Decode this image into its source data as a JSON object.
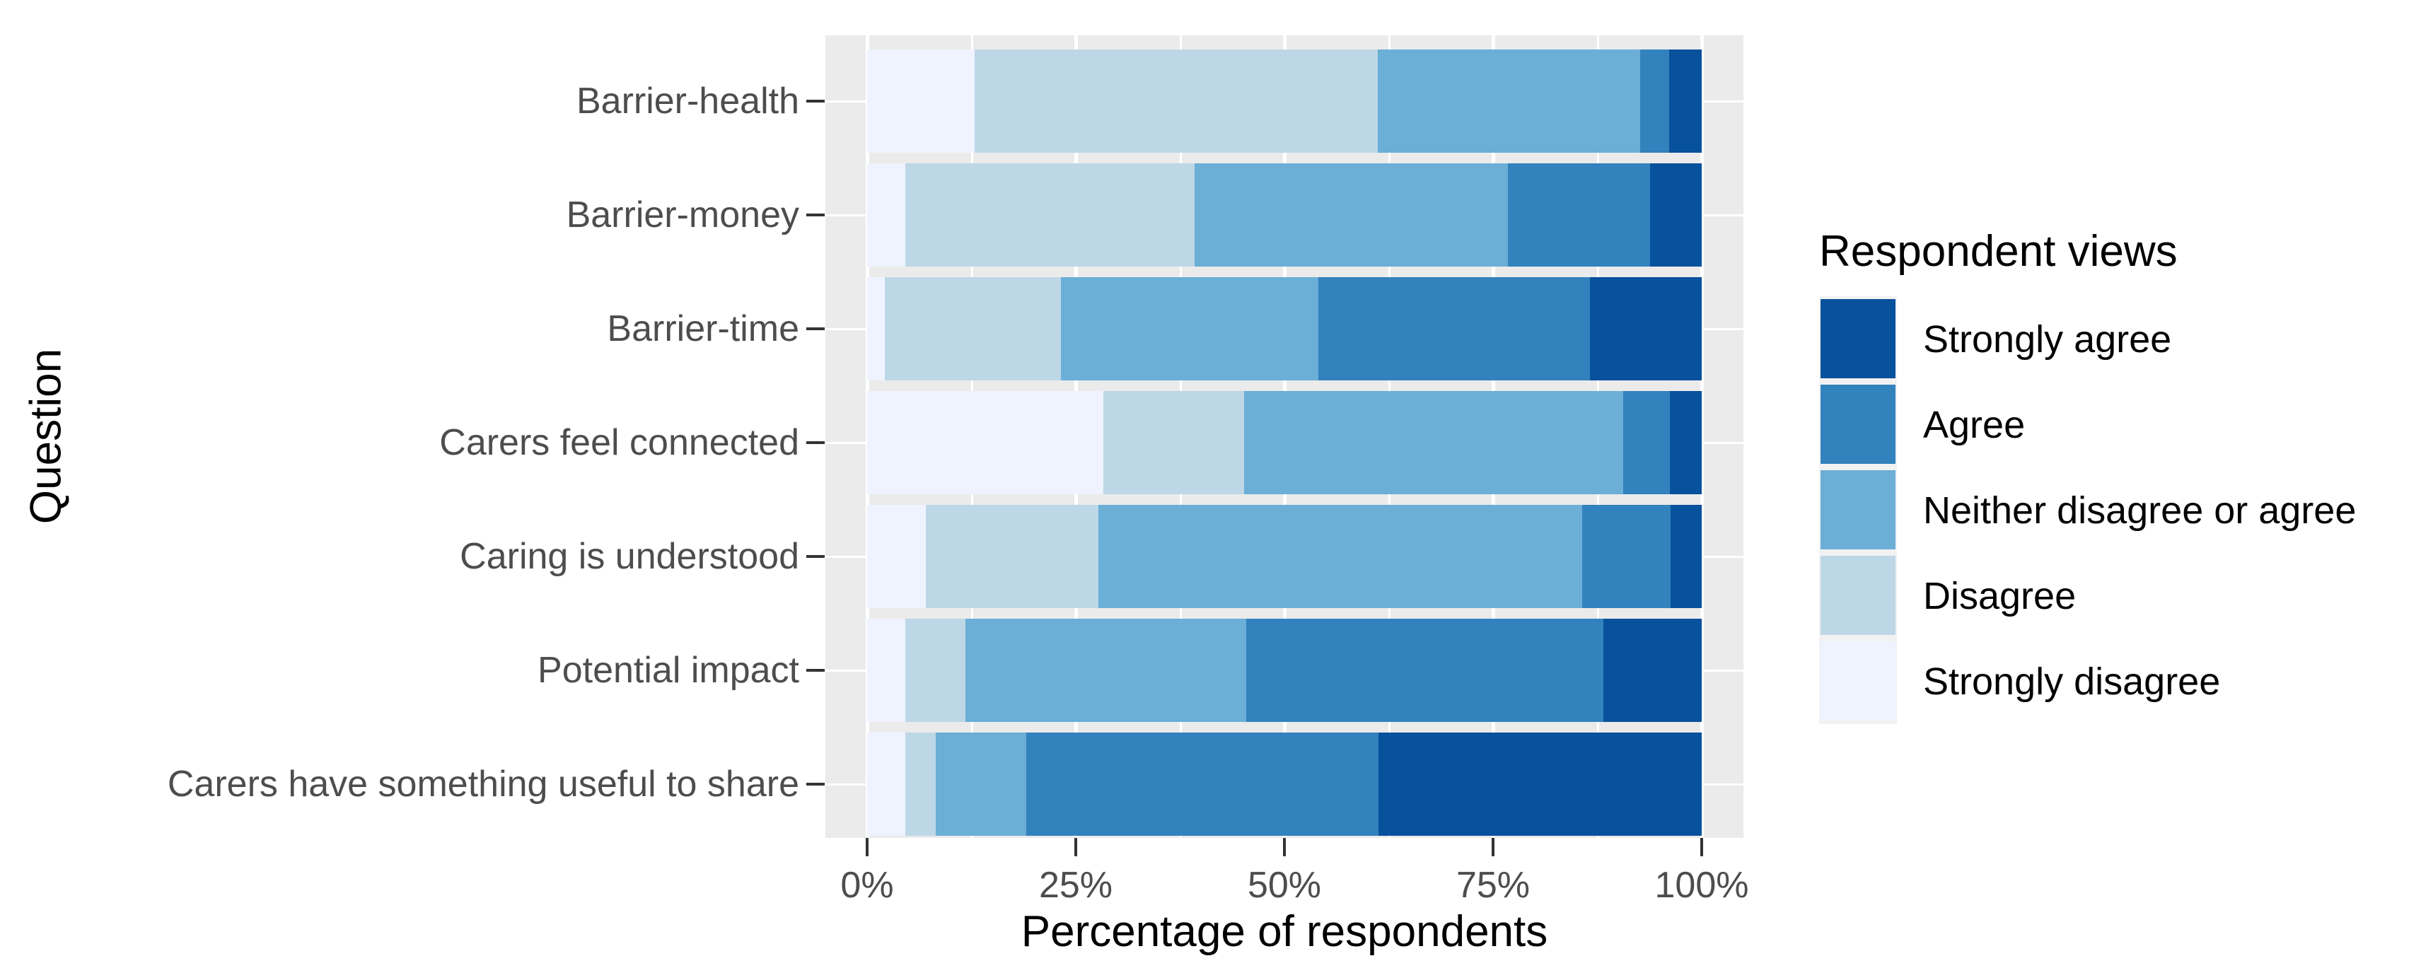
{
  "chart_data": {
    "type": "bar",
    "orientation": "horizontal",
    "stacked": true,
    "xlabel": "Percentage of respondents",
    "ylabel": "Question",
    "xlim": [
      0,
      100
    ],
    "x_ticks": [
      {
        "value": 0,
        "label": "0%"
      },
      {
        "value": 25,
        "label": "25%"
      },
      {
        "value": 50,
        "label": "50%"
      },
      {
        "value": 75,
        "label": "75%"
      },
      {
        "value": 100,
        "label": "100%"
      }
    ],
    "grid": {
      "major_x": [
        0,
        25,
        50,
        75,
        100
      ],
      "minor_x": [
        12.5,
        37.5,
        62.5,
        87.5
      ],
      "major_y_on_categories": true
    },
    "legend_title": "Respondent views",
    "legend_position": "right",
    "legend_order": [
      "Strongly agree",
      "Agree",
      "Neither disagree or agree",
      "Disagree",
      "Strongly disagree"
    ],
    "stack_order_left_to_right": [
      "Strongly disagree",
      "Disagree",
      "Neither disagree or agree",
      "Agree",
      "Strongly agree"
    ],
    "categories": [
      "Barrier-health",
      "Barrier-money",
      "Barrier-time",
      "Carers feel connected",
      "Caring is understood",
      "Potential impact",
      "Carers have something useful to share"
    ],
    "series": [
      {
        "name": "Strongly disagree",
        "values": [
          12.9,
          4.6,
          2.1,
          28.3,
          7.0,
          4.6,
          4.6
        ]
      },
      {
        "name": "Disagree",
        "values": [
          48.3,
          34.6,
          21.1,
          16.9,
          20.7,
          7.2,
          3.6
        ]
      },
      {
        "name": "Neither disagree or agree",
        "values": [
          31.4,
          37.6,
          30.9,
          45.4,
          58.0,
          33.6,
          10.9
        ]
      },
      {
        "name": "Agree",
        "values": [
          3.5,
          17.0,
          32.5,
          5.6,
          10.6,
          42.8,
          42.2
        ]
      },
      {
        "name": "Strongly agree",
        "values": [
          3.9,
          6.2,
          13.4,
          3.8,
          3.7,
          11.8,
          38.7
        ]
      }
    ],
    "colors": {
      "Strongly agree": "#08519C",
      "Agree": "#3182BD",
      "Neither disagree or agree": "#6BAED6",
      "Disagree": "#BDD7E7",
      "Strongly disagree": "#EFF3FF"
    },
    "units": "percent of respondents"
  },
  "styles": {
    "panel_background": "#EBEBEB",
    "grid_color": "#FFFFFF",
    "tick_color": "#333333",
    "axis_text_color": "#4D4D4D",
    "title_color": "#000000",
    "page_background": "#FFFFFF"
  }
}
